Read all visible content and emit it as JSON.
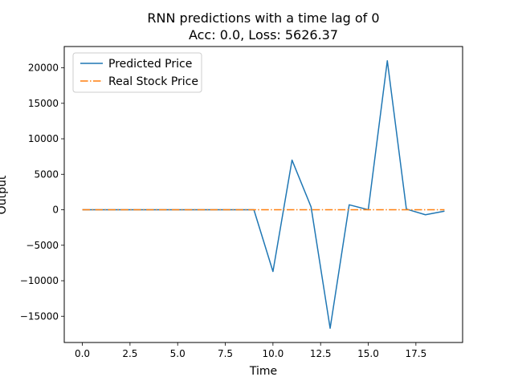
{
  "chart_data": {
    "type": "line",
    "title": "RNN predictions with a time lag of 0",
    "subtitle": "Acc: 0.0, Loss: 5626.37",
    "xlabel": "Time",
    "ylabel": "Output",
    "xlim": [
      -0.95,
      19.95
    ],
    "ylim": [
      -18700,
      23000
    ],
    "xticks": [
      0.0,
      2.5,
      5.0,
      7.5,
      10.0,
      12.5,
      15.0,
      17.5
    ],
    "xtick_labels": [
      "0.0",
      "2.5",
      "5.0",
      "7.5",
      "10.0",
      "12.5",
      "15.0",
      "17.5"
    ],
    "yticks": [
      -15000,
      -10000,
      -5000,
      0,
      5000,
      10000,
      15000,
      20000
    ],
    "ytick_labels": [
      "−15000",
      "−10000",
      "−5000",
      "0",
      "5000",
      "10000",
      "15000",
      "20000"
    ],
    "grid": false,
    "legend_position": "top-left",
    "x": [
      0,
      1,
      2,
      3,
      4,
      5,
      6,
      7,
      8,
      9,
      10,
      11,
      12,
      13,
      14,
      15,
      16,
      17,
      18,
      19
    ],
    "series": [
      {
        "name": "Predicted Price",
        "color": "#1f77b4",
        "style": "solid",
        "values": [
          0,
          0,
          0,
          0,
          0,
          0,
          0,
          0,
          0,
          0,
          -8700,
          7000,
          400,
          -16700,
          700,
          0,
          21000,
          100,
          -700,
          -200
        ]
      },
      {
        "name": "Real Stock Price",
        "color": "#ff7f0e",
        "style": "dashdot",
        "values": [
          0,
          0,
          0,
          0,
          0,
          0,
          0,
          0,
          0,
          0,
          0,
          0,
          0,
          0,
          0,
          0,
          0,
          0,
          0,
          0
        ]
      }
    ]
  }
}
